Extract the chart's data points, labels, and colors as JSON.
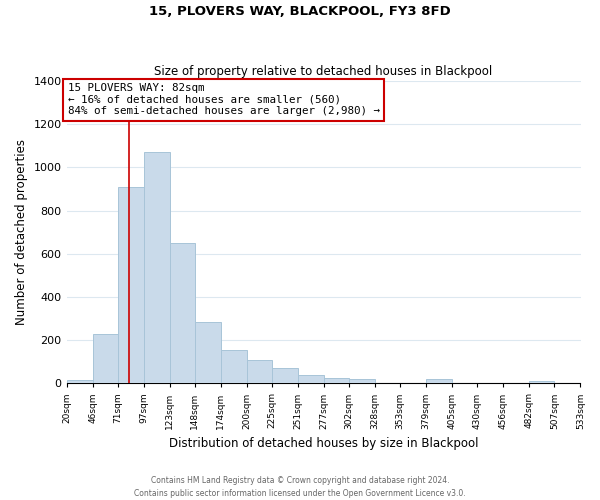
{
  "title": "15, PLOVERS WAY, BLACKPOOL, FY3 8FD",
  "subtitle": "Size of property relative to detached houses in Blackpool",
  "xlabel": "Distribution of detached houses by size in Blackpool",
  "ylabel": "Number of detached properties",
  "bar_color": "#c9daea",
  "bar_edge_color": "#a8c4d8",
  "bin_edges": [
    20,
    46,
    71,
    97,
    123,
    148,
    174,
    200,
    225,
    251,
    277,
    302,
    328,
    353,
    379,
    405,
    430,
    456,
    482,
    507,
    533
  ],
  "bar_heights": [
    15,
    228,
    910,
    1070,
    650,
    285,
    155,
    108,
    70,
    40,
    25,
    22,
    0,
    0,
    18,
    0,
    0,
    0,
    12,
    0
  ],
  "tick_labels": [
    "20sqm",
    "46sqm",
    "71sqm",
    "97sqm",
    "123sqm",
    "148sqm",
    "174sqm",
    "200sqm",
    "225sqm",
    "251sqm",
    "277sqm",
    "302sqm",
    "328sqm",
    "353sqm",
    "379sqm",
    "405sqm",
    "430sqm",
    "456sqm",
    "482sqm",
    "507sqm",
    "533sqm"
  ],
  "ylim": [
    0,
    1400
  ],
  "yticks": [
    0,
    200,
    400,
    600,
    800,
    1000,
    1200,
    1400
  ],
  "property_line_x": 82,
  "annotation_title": "15 PLOVERS WAY: 82sqm",
  "annotation_line1": "← 16% of detached houses are smaller (560)",
  "annotation_line2": "84% of semi-detached houses are larger (2,980) →",
  "annotation_box_color": "#ffffff",
  "annotation_box_edge_color": "#cc0000",
  "red_line_color": "#cc0000",
  "grid_color": "#dde8f0",
  "footnote1": "Contains HM Land Registry data © Crown copyright and database right 2024.",
  "footnote2": "Contains public sector information licensed under the Open Government Licence v3.0."
}
